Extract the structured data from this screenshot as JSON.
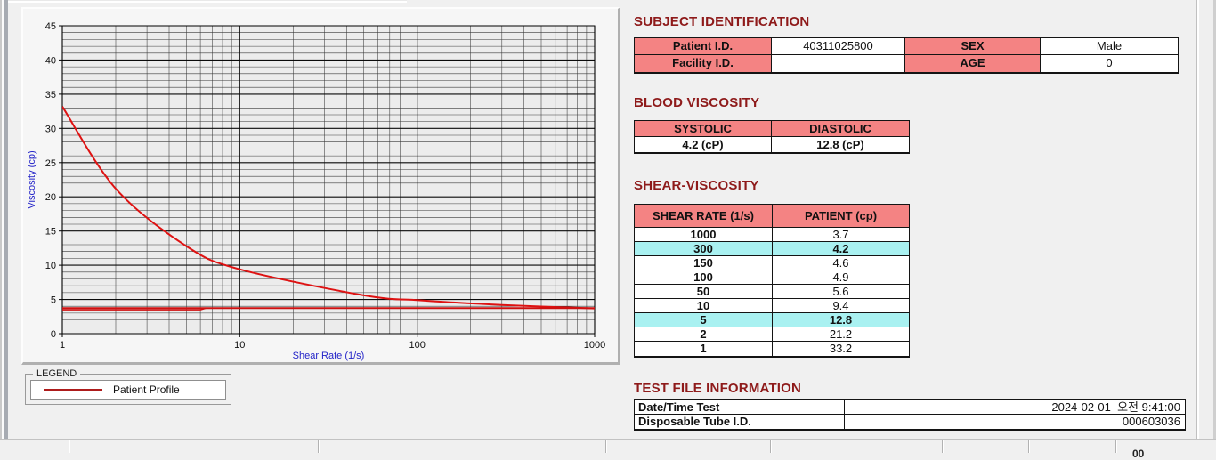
{
  "colors": {
    "heading": "#8e1a1a",
    "header_pink": "#f48383",
    "highlight_cyan": "#a9f1f1",
    "curve_red": "#de1212",
    "reference_red": "#cf1010",
    "legend_red": "#ae1c1c",
    "axis_label_blue": "#2323c8"
  },
  "chart_data": {
    "type": "line",
    "title": "",
    "xlabel": "Shear Rate (1/s)",
    "ylabel": "Viscosity (cp)",
    "x_scale": "log",
    "xlim": [
      1,
      1000
    ],
    "ylim": [
      0,
      45
    ],
    "y_major_step": 5,
    "y_minor_step": 1,
    "x_ticks": [
      1,
      10,
      100,
      1000
    ],
    "grid": true,
    "legend_position": "bottom-left-groupbox",
    "series": [
      {
        "name": "Patient Profile",
        "smooth": true,
        "color": "#de1212",
        "width": 2,
        "points": [
          [
            1,
            33.2
          ],
          [
            2,
            21.2
          ],
          [
            5,
            12.8
          ],
          [
            10,
            9.4
          ],
          [
            50,
            5.6
          ],
          [
            100,
            4.9
          ],
          [
            150,
            4.6
          ],
          [
            300,
            4.2
          ],
          [
            1000,
            3.7
          ]
        ]
      },
      {
        "name": "high-shear-reference-line",
        "smooth": false,
        "color": "#cf1010",
        "width": 2,
        "points": [
          [
            1,
            3.75
          ],
          [
            1000,
            3.75
          ]
        ]
      },
      {
        "name": "low-reference-step-line",
        "smooth": false,
        "color": "#cf1010",
        "width": 1.5,
        "points": [
          [
            1,
            3.5
          ],
          [
            6,
            3.5
          ],
          [
            6.5,
            3.75
          ]
        ]
      }
    ]
  },
  "legend": {
    "box_label": "LEGEND",
    "entries": [
      {
        "label": "Patient Profile"
      }
    ]
  },
  "sections": {
    "subject": {
      "title": "SUBJECT IDENTIFICATION",
      "fields": [
        {
          "label": "Patient I.D.",
          "value": "40311025800"
        },
        {
          "label": "SEX",
          "value": "Male"
        },
        {
          "label": "Facility I.D.",
          "value": ""
        },
        {
          "label": "AGE",
          "value": "0"
        }
      ]
    },
    "blood": {
      "title": "BLOOD VISCOSITY",
      "headers": [
        "SYSTOLIC",
        "DIASTOLIC"
      ],
      "values": [
        "4.2 (cP)",
        "12.8 (cP)"
      ]
    },
    "shear": {
      "title": "SHEAR-VISCOSITY",
      "headers": [
        "SHEAR RATE (1/s)",
        "PATIENT (cp)"
      ],
      "rows": [
        {
          "rate": "1000",
          "value": "3.7",
          "highlight": false
        },
        {
          "rate": "300",
          "value": "4.2",
          "highlight": true
        },
        {
          "rate": "150",
          "value": "4.6",
          "highlight": false
        },
        {
          "rate": "100",
          "value": "4.9",
          "highlight": false
        },
        {
          "rate": "50",
          "value": "5.6",
          "highlight": false
        },
        {
          "rate": "10",
          "value": "9.4",
          "highlight": false
        },
        {
          "rate": "5",
          "value": "12.8",
          "highlight": true
        },
        {
          "rate": "2",
          "value": "21.2",
          "highlight": false
        },
        {
          "rate": "1",
          "value": "33.2",
          "highlight": false
        }
      ]
    },
    "testfile": {
      "title": "TEST FILE INFORMATION",
      "rows": [
        {
          "label": "Date/Time Test",
          "value": "2024-02-01  오전 9:41:00"
        },
        {
          "label": "Disposable Tube I.D.",
          "value": "000603036"
        }
      ]
    }
  },
  "statusbar": {
    "partial_text": "00"
  }
}
